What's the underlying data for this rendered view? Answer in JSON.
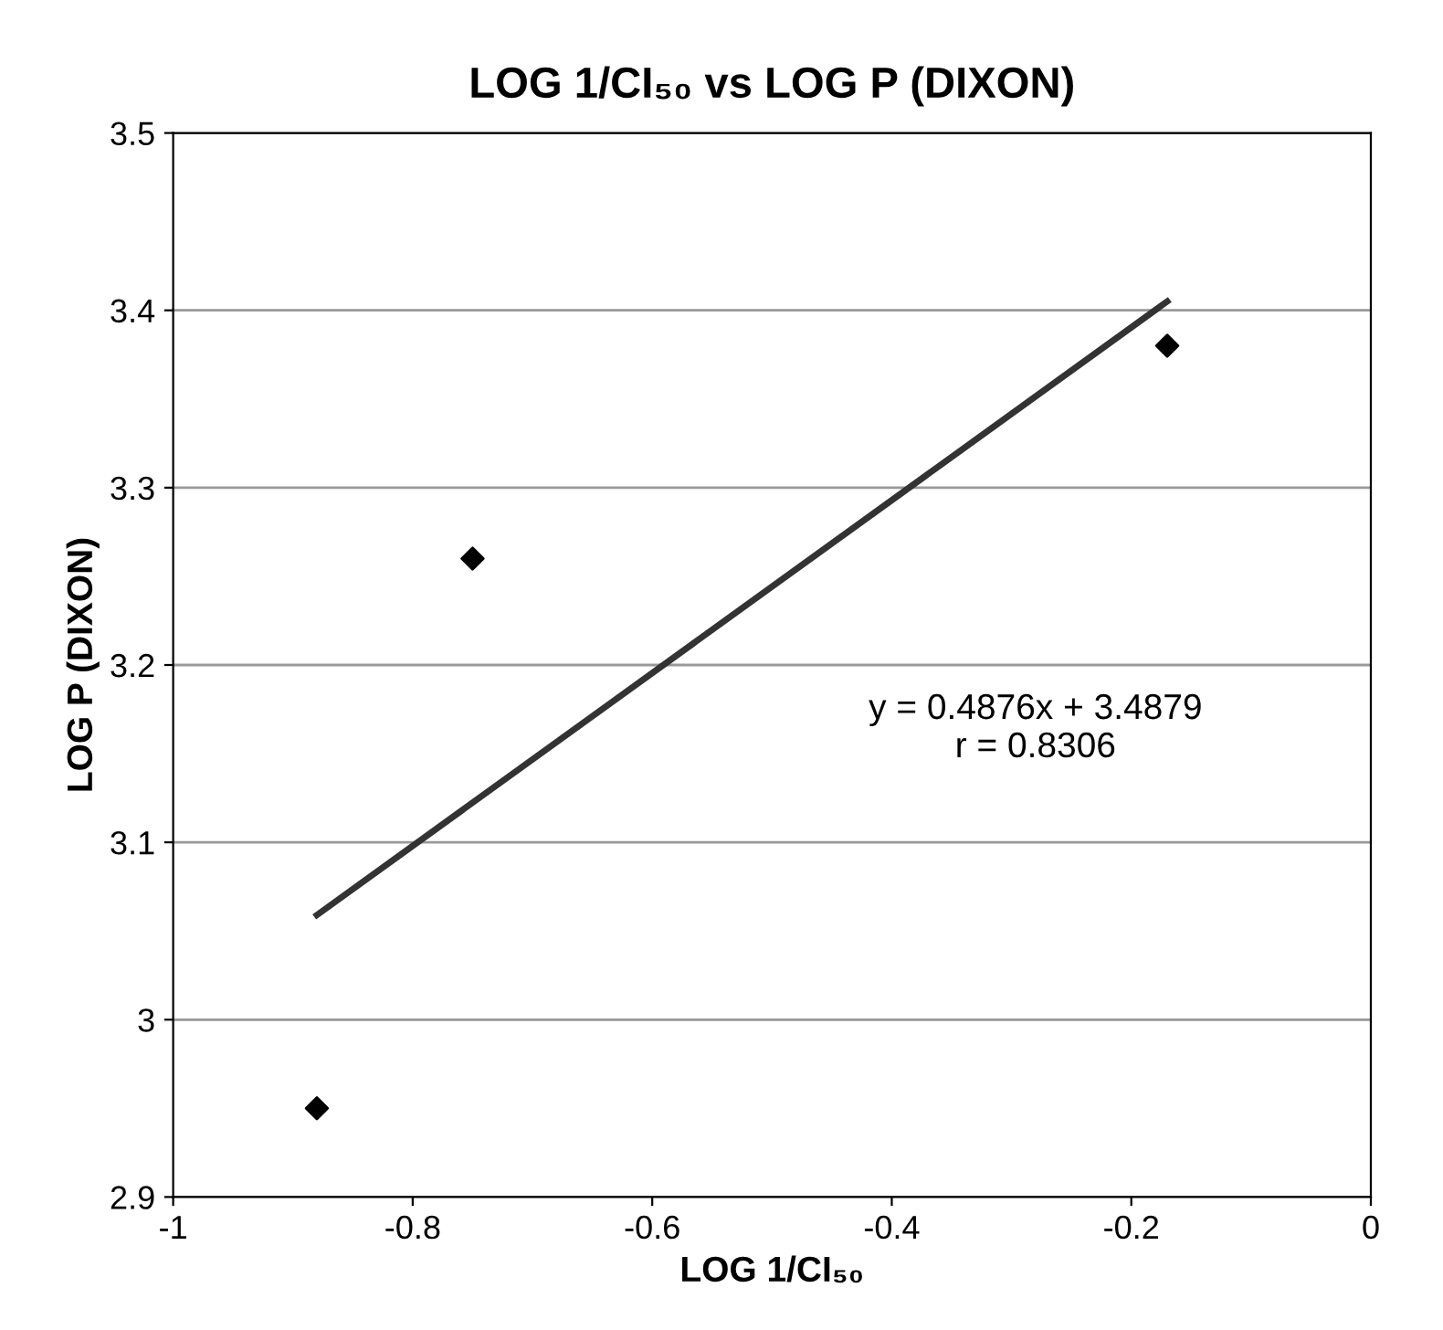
{
  "chart_data": {
    "type": "scatter",
    "title": "LOG 1/CI₅₀ vs LOG P (DIXON)",
    "xlabel": "LOG 1/CI₅₀",
    "ylabel": "LOG P (DIXON)",
    "series": [
      {
        "color": "#000000",
        "x": [
          -0.17,
          -0.75,
          -0.88
        ],
        "values": [
          3.38,
          3.26,
          2.95
        ],
        "marker": "diamond"
      },
      {
        "type": "line",
        "color": "#333333",
        "x": [
          -0.88,
          -0.17
        ],
        "values": [
          3.059,
          3.405
        ],
        "marker": "none"
      }
    ],
    "annotations": [
      "y = 0.4876x + 3.4879\nr = 0.8306"
    ],
    "xlim": [
      -1,
      0
    ],
    "xticks": [
      -1,
      -0.8,
      -0.6,
      -0.4,
      -0.2,
      0
    ],
    "ylim": [
      2.9,
      3.5
    ],
    "yticks": [
      2.9,
      3,
      3.1,
      3.2,
      3.3,
      3.4,
      3.5
    ],
    "grid": "y",
    "legend": false
  }
}
